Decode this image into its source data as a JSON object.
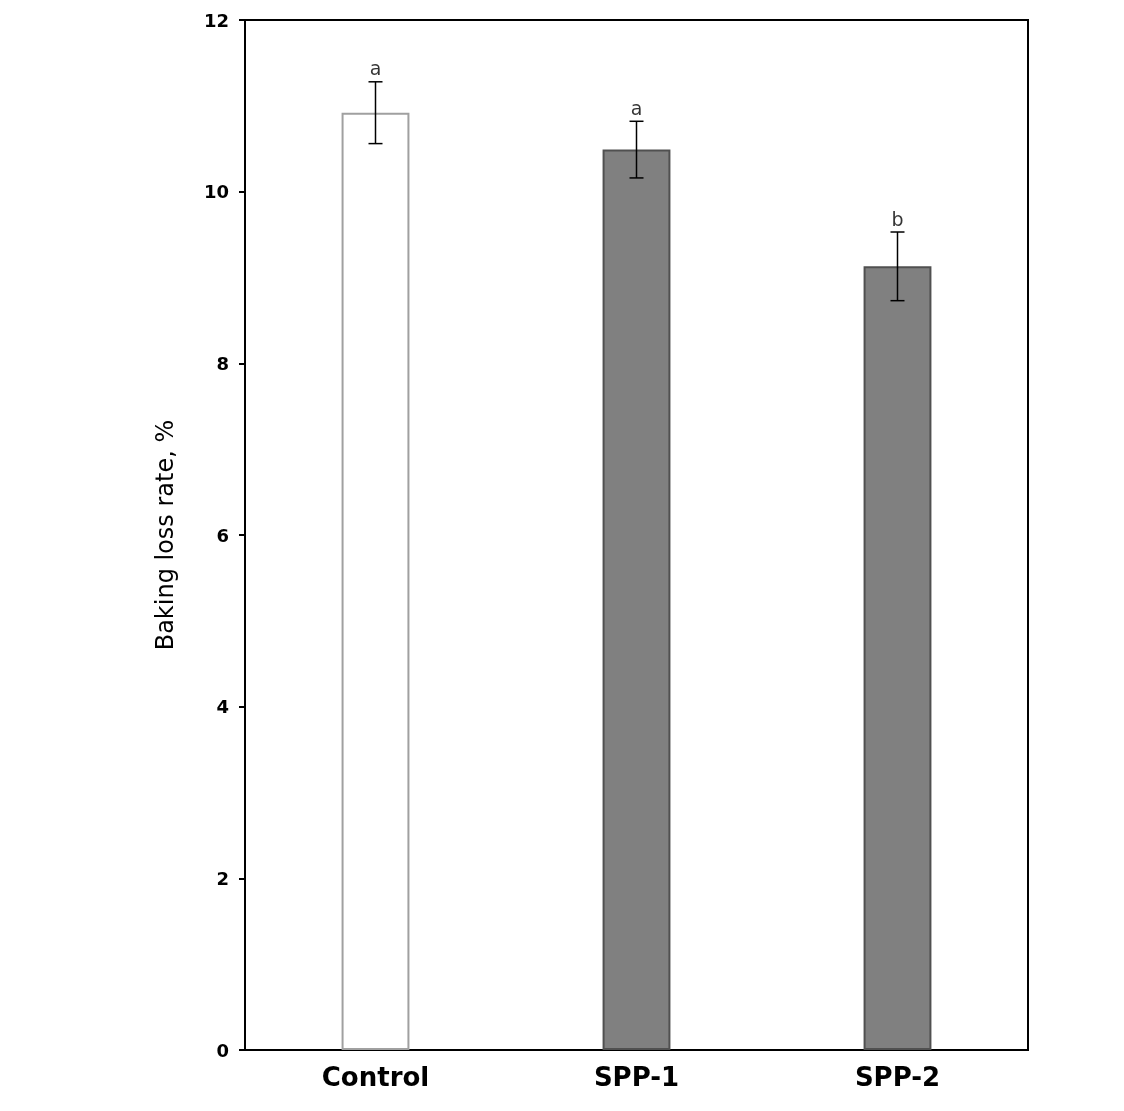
{
  "chart_data": {
    "type": "bar",
    "ylabel": "Baking loss rate, %",
    "categories": [
      "Control",
      "SPP-1",
      "SPP-2"
    ],
    "values": [
      10.92,
      10.49,
      9.13
    ],
    "errors": [
      0.36,
      0.33,
      0.4
    ],
    "colors": [
      "#ffffff",
      "#808080",
      "#808080"
    ],
    "ylim": [
      0,
      12
    ],
    "yticks": [
      0,
      2,
      4,
      6,
      8,
      10,
      12
    ],
    "grid": false,
    "annotations": [
      {
        "text": "a",
        "x": "Control",
        "y": 11.28
      },
      {
        "text": "a",
        "x": "SPP-1",
        "y": 10.82
      },
      {
        "text": "b",
        "x": "SPP-2",
        "y": 9.53
      }
    ]
  }
}
